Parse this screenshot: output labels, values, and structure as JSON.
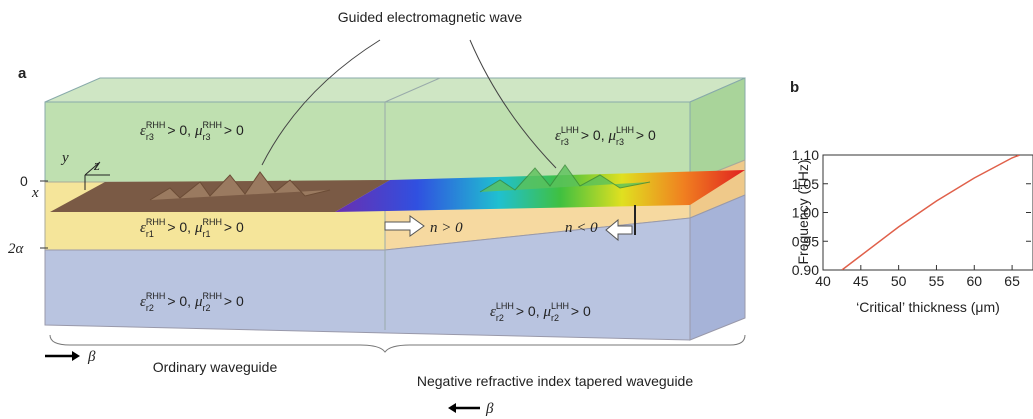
{
  "figure": {
    "caption_top": "Guided electromagnetic wave",
    "panel_a": "a",
    "panel_b": "b",
    "axis_y": "y",
    "axis_z": "z",
    "axis_x": "x",
    "zero": "0",
    "two_alpha": "2α",
    "beta_right": "β",
    "beta_left": "β",
    "n_positive": "n > 0",
    "n_negative": "n < 0",
    "label_ordinary": "Ordinary waveguide",
    "label_negative": "Negative refractive index tapered waveguide",
    "equations": [
      [
        {
          "symbol": "ε",
          "sub": "r3",
          "sup": "RHH",
          "relation": " > 0, "
        },
        {
          "symbol": "μ",
          "sub": "r3",
          "sup": "RHH",
          "relation": " > 0"
        }
      ],
      [
        {
          "symbol": "ε",
          "sub": "r3",
          "sup": "LHH",
          "relation": " > 0, "
        },
        {
          "symbol": "μ",
          "sub": "r3",
          "sup": "LHH",
          "relation": " > 0"
        }
      ],
      [
        {
          "symbol": "ε",
          "sub": "r1",
          "sup": "RHH",
          "relation": " > 0, "
        },
        {
          "symbol": "μ",
          "sub": "r1",
          "sup": "RHH",
          "relation": " > 0"
        }
      ],
      [
        {
          "symbol": "ε",
          "sub": "r2",
          "sup": "RHH",
          "relation": " > 0, "
        },
        {
          "symbol": "μ",
          "sub": "r2",
          "sup": "RHH",
          "relation": " > 0"
        }
      ],
      [
        {
          "symbol": "ε",
          "sub": "r2",
          "sup": "LHH",
          "relation": " > 0, "
        },
        {
          "symbol": "μ",
          "sub": "r2",
          "sup": "LHH",
          "relation": " > 0"
        }
      ]
    ]
  },
  "chart_data": {
    "type": "line",
    "x_label": "‘Critical’ thickness (μm)",
    "y_label": "Frequency (THz)",
    "x": [
      42.5,
      45,
      50,
      55,
      60,
      65,
      66
    ],
    "values": [
      0.9,
      0.925,
      0.975,
      1.02,
      1.06,
      1.095,
      1.1
    ],
    "color": "#e0604a",
    "xlim": [
      40,
      67.5
    ],
    "ylim": [
      0.9,
      1.1
    ],
    "xticks": [
      40,
      45,
      50,
      55,
      60,
      65
    ],
    "yticks": [
      {
        "value": 0.9,
        "label": "0.90"
      },
      {
        "value": 0.95,
        "label": "0.95"
      },
      {
        "value": 1,
        "label": "1.00"
      },
      {
        "value": 1.05,
        "label": "1.05"
      },
      {
        "value": 1.1,
        "label": "1.10"
      }
    ]
  }
}
